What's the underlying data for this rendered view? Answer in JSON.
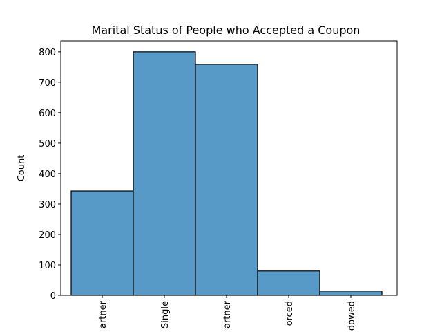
{
  "chart_data": {
    "type": "bar",
    "title": "Marital Status of People who Accepted a Coupon",
    "ylabel": "Count",
    "categories": [
      "artner",
      "Single",
      "artner",
      "orced",
      "dowed"
    ],
    "values": [
      343,
      800,
      759,
      80,
      14
    ],
    "color": "#5799c7",
    "ylim": [
      0,
      836
    ],
    "yticks": [
      0,
      100,
      200,
      300,
      400,
      500,
      600,
      700,
      800
    ]
  }
}
